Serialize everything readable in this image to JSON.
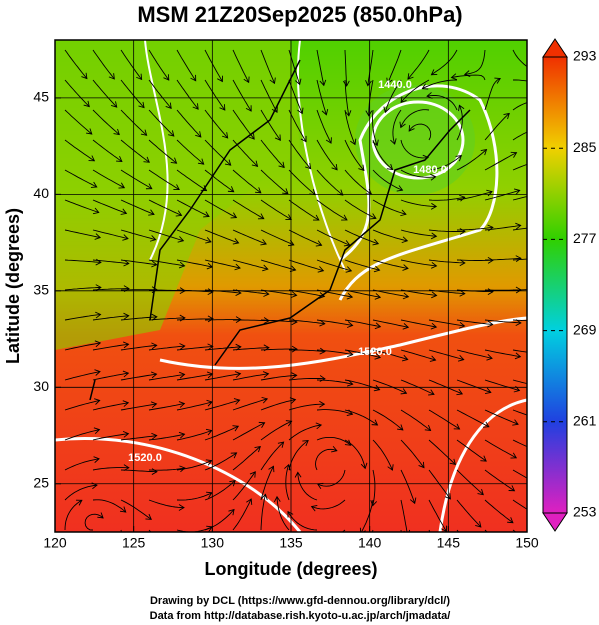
{
  "title": "MSM 21Z20Sep2025 (850.0hPa)",
  "axes": {
    "xlabel": "Longitude (degrees)",
    "ylabel": "Latitude  (degrees)",
    "xlim": [
      120,
      150
    ],
    "ylim": [
      22.5,
      48
    ],
    "xticks": [
      120,
      125,
      130,
      135,
      140,
      145,
      150
    ],
    "yticks": [
      25,
      30,
      35,
      40,
      45
    ]
  },
  "colorbar": {
    "range": [
      253,
      293
    ],
    "ticks": [
      253,
      261,
      269,
      277,
      285,
      293
    ],
    "colors": [
      "#e020c0",
      "#2040e0",
      "#00d0e0",
      "#30d000",
      "#f0d000",
      "#f03000"
    ]
  },
  "contour_labels": [
    "1520.0",
    "1520.0",
    "1480.0",
    "1440.0"
  ],
  "footer": [
    "Drawing by DCL (https://www.gfd-dennou.org/library/dcl/)",
    "Data from http://database.rish.kyoto-u.ac.jp/arch/jmadata/"
  ]
}
